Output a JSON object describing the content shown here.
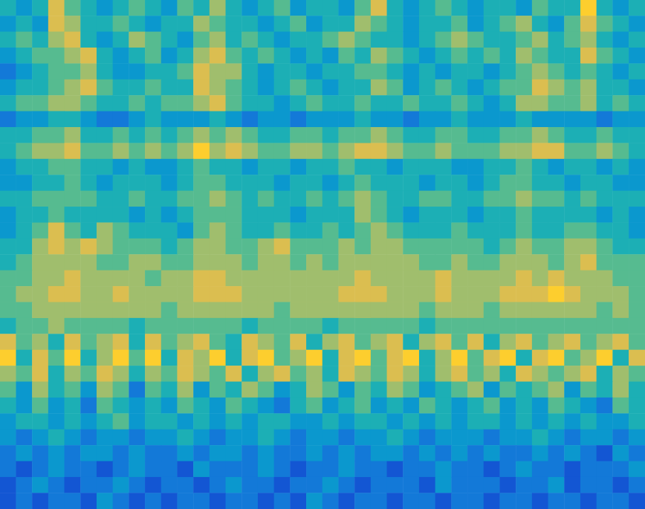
{
  "chart_data": {
    "type": "heatmap",
    "tick_labels": false,
    "clim": [
      0,
      9
    ],
    "cells": [
      [
        4,
        3,
        4,
        7,
        5,
        4,
        3,
        4,
        5,
        4,
        3,
        5,
        4,
        6,
        4,
        3,
        4,
        5,
        3,
        4,
        4,
        3,
        5,
        7,
        4,
        3,
        4,
        5,
        4,
        3,
        4,
        4,
        3,
        5,
        4,
        4,
        8,
        4,
        3,
        4
      ],
      [
        3,
        4,
        3,
        7,
        6,
        4,
        4,
        5,
        4,
        3,
        4,
        4,
        6,
        5,
        4,
        4,
        3,
        4,
        5,
        3,
        4,
        4,
        6,
        5,
        4,
        3,
        4,
        4,
        5,
        3,
        4,
        5,
        6,
        4,
        3,
        5,
        7,
        5,
        4,
        3
      ],
      [
        4,
        5,
        4,
        6,
        7,
        4,
        3,
        4,
        6,
        5,
        4,
        3,
        5,
        6,
        4,
        5,
        4,
        3,
        4,
        4,
        5,
        6,
        5,
        4,
        4,
        3,
        4,
        5,
        6,
        5,
        4,
        4,
        5,
        6,
        4,
        5,
        6,
        4,
        3,
        4
      ],
      [
        3,
        4,
        5,
        5,
        6,
        7,
        4,
        3,
        4,
        5,
        3,
        4,
        6,
        7,
        5,
        4,
        5,
        4,
        3,
        4,
        3,
        5,
        4,
        6,
        5,
        4,
        3,
        4,
        5,
        4,
        5,
        4,
        6,
        5,
        4,
        4,
        7,
        5,
        4,
        3
      ],
      [
        2,
        3,
        4,
        5,
        5,
        6,
        4,
        3,
        3,
        4,
        4,
        5,
        7,
        6,
        6,
        4,
        3,
        4,
        4,
        3,
        4,
        4,
        5,
        5,
        4,
        3,
        4,
        3,
        4,
        4,
        3,
        4,
        5,
        6,
        5,
        4,
        5,
        4,
        3,
        4
      ],
      [
        3,
        4,
        4,
        5,
        6,
        7,
        5,
        4,
        4,
        5,
        4,
        4,
        7,
        6,
        5,
        4,
        3,
        4,
        5,
        4,
        3,
        4,
        4,
        6,
        5,
        3,
        4,
        5,
        4,
        3,
        4,
        5,
        5,
        7,
        6,
        5,
        6,
        4,
        4,
        3
      ],
      [
        4,
        5,
        5,
        6,
        6,
        5,
        4,
        4,
        5,
        4,
        5,
        5,
        6,
        7,
        5,
        4,
        4,
        3,
        4,
        5,
        4,
        4,
        5,
        4,
        4,
        5,
        4,
        4,
        5,
        4,
        3,
        4,
        6,
        6,
        5,
        5,
        6,
        4,
        5,
        4
      ],
      [
        2,
        3,
        3,
        4,
        4,
        3,
        2,
        2,
        3,
        4,
        3,
        3,
        3,
        4,
        3,
        2,
        3,
        3,
        2,
        3,
        3,
        3,
        4,
        3,
        3,
        2,
        3,
        3,
        4,
        3,
        3,
        3,
        4,
        3,
        3,
        3,
        3,
        2,
        3,
        3
      ],
      [
        4,
        4,
        5,
        5,
        6,
        4,
        4,
        5,
        4,
        5,
        4,
        5,
        6,
        5,
        6,
        5,
        4,
        4,
        5,
        5,
        4,
        5,
        5,
        6,
        5,
        4,
        4,
        5,
        5,
        4,
        4,
        5,
        5,
        6,
        5,
        4,
        4,
        5,
        4,
        4
      ],
      [
        4,
        5,
        6,
        6,
        7,
        5,
        5,
        6,
        5,
        6,
        5,
        6,
        8,
        6,
        7,
        6,
        5,
        5,
        6,
        6,
        5,
        6,
        7,
        7,
        6,
        5,
        5,
        6,
        5,
        5,
        5,
        6,
        6,
        7,
        7,
        5,
        5,
        6,
        5,
        4
      ],
      [
        3,
        4,
        4,
        5,
        5,
        4,
        4,
        3,
        4,
        3,
        3,
        4,
        5,
        4,
        4,
        3,
        4,
        4,
        3,
        4,
        4,
        5,
        4,
        4,
        3,
        4,
        4,
        4,
        3,
        3,
        4,
        4,
        5,
        4,
        3,
        4,
        4,
        3,
        4,
        3
      ],
      [
        3,
        3,
        4,
        4,
        5,
        4,
        3,
        4,
        4,
        4,
        3,
        4,
        5,
        5,
        4,
        4,
        4,
        3,
        4,
        4,
        3,
        4,
        5,
        4,
        4,
        4,
        3,
        4,
        4,
        3,
        4,
        5,
        5,
        4,
        4,
        3,
        4,
        4,
        3,
        3
      ],
      [
        4,
        4,
        5,
        5,
        5,
        5,
        4,
        4,
        5,
        4,
        4,
        5,
        5,
        6,
        5,
        4,
        5,
        4,
        4,
        5,
        4,
        5,
        6,
        5,
        4,
        4,
        5,
        5,
        4,
        4,
        5,
        5,
        6,
        5,
        5,
        4,
        5,
        4,
        4,
        4
      ],
      [
        3,
        4,
        4,
        5,
        4,
        4,
        4,
        4,
        3,
        4,
        3,
        4,
        5,
        5,
        5,
        4,
        4,
        4,
        3,
        4,
        4,
        4,
        6,
        5,
        4,
        3,
        4,
        4,
        4,
        3,
        4,
        4,
        5,
        4,
        4,
        4,
        4,
        3,
        4,
        3
      ],
      [
        3,
        4,
        5,
        7,
        5,
        4,
        6,
        5,
        4,
        4,
        4,
        3,
        5,
        6,
        5,
        4,
        4,
        5,
        4,
        4,
        5,
        4,
        5,
        6,
        5,
        4,
        4,
        4,
        5,
        4,
        4,
        4,
        5,
        4,
        4,
        5,
        5,
        4,
        4,
        3
      ],
      [
        4,
        4,
        6,
        7,
        6,
        7,
        6,
        5,
        5,
        5,
        4,
        5,
        6,
        6,
        5,
        5,
        6,
        7,
        5,
        5,
        5,
        6,
        5,
        6,
        6,
        5,
        5,
        5,
        5,
        5,
        4,
        5,
        6,
        5,
        5,
        6,
        6,
        5,
        4,
        4
      ],
      [
        4,
        5,
        6,
        6,
        6,
        6,
        5,
        5,
        6,
        6,
        5,
        5,
        6,
        6,
        6,
        5,
        6,
        6,
        5,
        6,
        5,
        6,
        6,
        6,
        6,
        6,
        5,
        5,
        6,
        5,
        5,
        6,
        6,
        6,
        5,
        6,
        7,
        5,
        5,
        5
      ],
      [
        5,
        5,
        6,
        6,
        7,
        6,
        6,
        6,
        6,
        5,
        6,
        6,
        7,
        7,
        6,
        6,
        6,
        6,
        6,
        6,
        6,
        6,
        7,
        6,
        6,
        6,
        6,
        7,
        6,
        6,
        6,
        6,
        7,
        6,
        7,
        6,
        6,
        6,
        5,
        5
      ],
      [
        5,
        6,
        6,
        7,
        7,
        6,
        6,
        7,
        6,
        6,
        6,
        6,
        7,
        7,
        7,
        6,
        6,
        6,
        6,
        6,
        6,
        7,
        7,
        7,
        6,
        6,
        6,
        7,
        6,
        6,
        6,
        7,
        7,
        7,
        8,
        7,
        6,
        6,
        6,
        5
      ],
      [
        5,
        5,
        6,
        6,
        6,
        6,
        6,
        6,
        6,
        6,
        5,
        6,
        6,
        6,
        6,
        6,
        6,
        5,
        6,
        6,
        6,
        6,
        6,
        6,
        6,
        6,
        5,
        6,
        6,
        6,
        5,
        6,
        6,
        6,
        6,
        6,
        6,
        5,
        6,
        5
      ],
      [
        4,
        5,
        5,
        6,
        5,
        5,
        5,
        5,
        4,
        5,
        5,
        5,
        5,
        5,
        5,
        4,
        5,
        5,
        5,
        5,
        4,
        5,
        5,
        5,
        5,
        5,
        4,
        5,
        5,
        5,
        5,
        5,
        5,
        5,
        5,
        5,
        5,
        5,
        5,
        5
      ],
      [
        7,
        5,
        6,
        4,
        7,
        5,
        6,
        7,
        4,
        7,
        5,
        6,
        7,
        5,
        4,
        7,
        6,
        5,
        7,
        4,
        6,
        7,
        5,
        6,
        7,
        4,
        6,
        7,
        5,
        7,
        4,
        6,
        7,
        5,
        6,
        7,
        5,
        6,
        7,
        5
      ],
      [
        8,
        4,
        7,
        5,
        8,
        4,
        6,
        8,
        5,
        8,
        4,
        7,
        6,
        8,
        4,
        7,
        8,
        5,
        6,
        8,
        4,
        7,
        8,
        5,
        7,
        8,
        4,
        6,
        8,
        5,
        7,
        8,
        4,
        7,
        8,
        5,
        6,
        8,
        4,
        7
      ],
      [
        6,
        5,
        7,
        4,
        6,
        5,
        7,
        6,
        4,
        6,
        5,
        7,
        6,
        5,
        7,
        4,
        6,
        7,
        5,
        6,
        4,
        7,
        6,
        5,
        7,
        6,
        4,
        6,
        7,
        5,
        6,
        4,
        7,
        6,
        5,
        6,
        7,
        4,
        6,
        5
      ],
      [
        5,
        3,
        6,
        4,
        5,
        3,
        6,
        5,
        2,
        5,
        4,
        6,
        3,
        5,
        4,
        6,
        5,
        3,
        4,
        6,
        5,
        3,
        5,
        4,
        6,
        5,
        3,
        4,
        5,
        6,
        3,
        5,
        4,
        5,
        6,
        3,
        5,
        4,
        6,
        4
      ],
      [
        4,
        3,
        5,
        3,
        4,
        2,
        5,
        4,
        3,
        4,
        3,
        5,
        4,
        3,
        5,
        4,
        3,
        2,
        4,
        5,
        3,
        4,
        5,
        3,
        4,
        3,
        5,
        4,
        3,
        4,
        5,
        3,
        4,
        3,
        5,
        4,
        3,
        2,
        5,
        4
      ],
      [
        3,
        4,
        4,
        3,
        4,
        3,
        4,
        5,
        3,
        4,
        4,
        3,
        4,
        3,
        4,
        3,
        4,
        4,
        3,
        3,
        4,
        3,
        4,
        4,
        3,
        4,
        3,
        4,
        3,
        4,
        4,
        3,
        4,
        3,
        4,
        3,
        4,
        3,
        3,
        4
      ],
      [
        3,
        2,
        3,
        4,
        3,
        2,
        3,
        3,
        2,
        3,
        3,
        4,
        3,
        2,
        3,
        3,
        4,
        3,
        2,
        3,
        3,
        2,
        3,
        3,
        4,
        3,
        2,
        3,
        3,
        3,
        2,
        3,
        3,
        4,
        3,
        2,
        3,
        3,
        2,
        3
      ],
      [
        2,
        3,
        2,
        3,
        2,
        3,
        3,
        2,
        3,
        2,
        2,
        3,
        2,
        3,
        3,
        2,
        3,
        2,
        2,
        3,
        2,
        3,
        2,
        3,
        3,
        2,
        3,
        2,
        3,
        2,
        3,
        2,
        2,
        3,
        2,
        3,
        2,
        1,
        3,
        2
      ],
      [
        2,
        1,
        2,
        3,
        2,
        2,
        1,
        2,
        3,
        2,
        2,
        1,
        3,
        2,
        2,
        2,
        3,
        2,
        1,
        2,
        2,
        3,
        2,
        2,
        1,
        2,
        2,
        3,
        2,
        2,
        1,
        2,
        3,
        2,
        2,
        1,
        2,
        2,
        2,
        3
      ],
      [
        1,
        2,
        3,
        2,
        1,
        2,
        2,
        3,
        2,
        1,
        2,
        2,
        1,
        2,
        3,
        2,
        2,
        1,
        2,
        2,
        3,
        2,
        1,
        2,
        2,
        2,
        1,
        3,
        2,
        2,
        2,
        1,
        2,
        2,
        3,
        1,
        2,
        2,
        1,
        2
      ],
      [
        1,
        2,
        1,
        2,
        2,
        1,
        3,
        2,
        1,
        2,
        1,
        2,
        2,
        1,
        2,
        2,
        1,
        2,
        1,
        3,
        2,
        1,
        2,
        2,
        1,
        2,
        2,
        1,
        2,
        2,
        1,
        2,
        2,
        1,
        2,
        2,
        1,
        2,
        2,
        1
      ]
    ]
  }
}
